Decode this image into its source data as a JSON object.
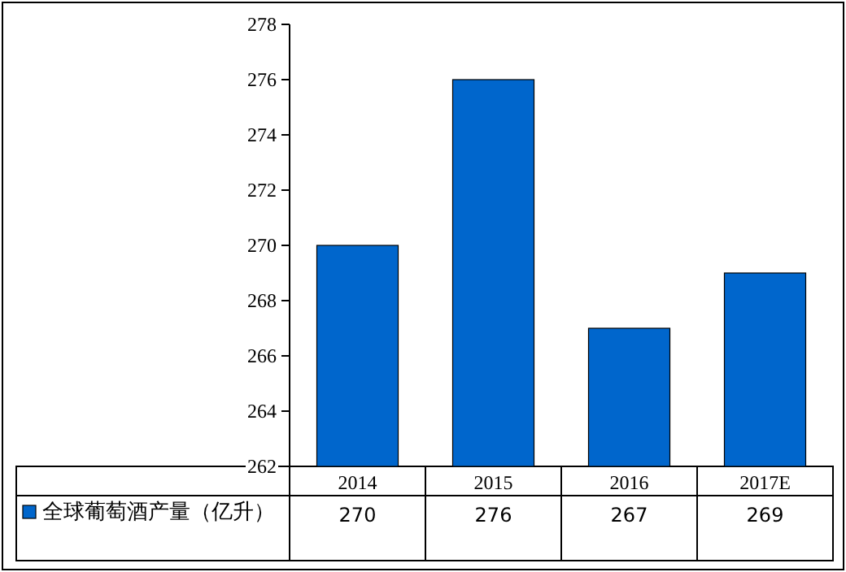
{
  "chart_data": {
    "type": "bar",
    "categories": [
      "2014",
      "2015",
      "2016",
      "2017E"
    ],
    "series": [
      {
        "name": "全球葡萄酒产量（亿升）",
        "color": "#0066cc",
        "values": [
          270,
          276,
          267,
          269
        ]
      }
    ],
    "ylim": [
      262,
      278
    ],
    "yticks": [
      262,
      264,
      266,
      268,
      270,
      272,
      274,
      276,
      278
    ],
    "data_labels": true,
    "legend": "bottom",
    "grid": false
  }
}
